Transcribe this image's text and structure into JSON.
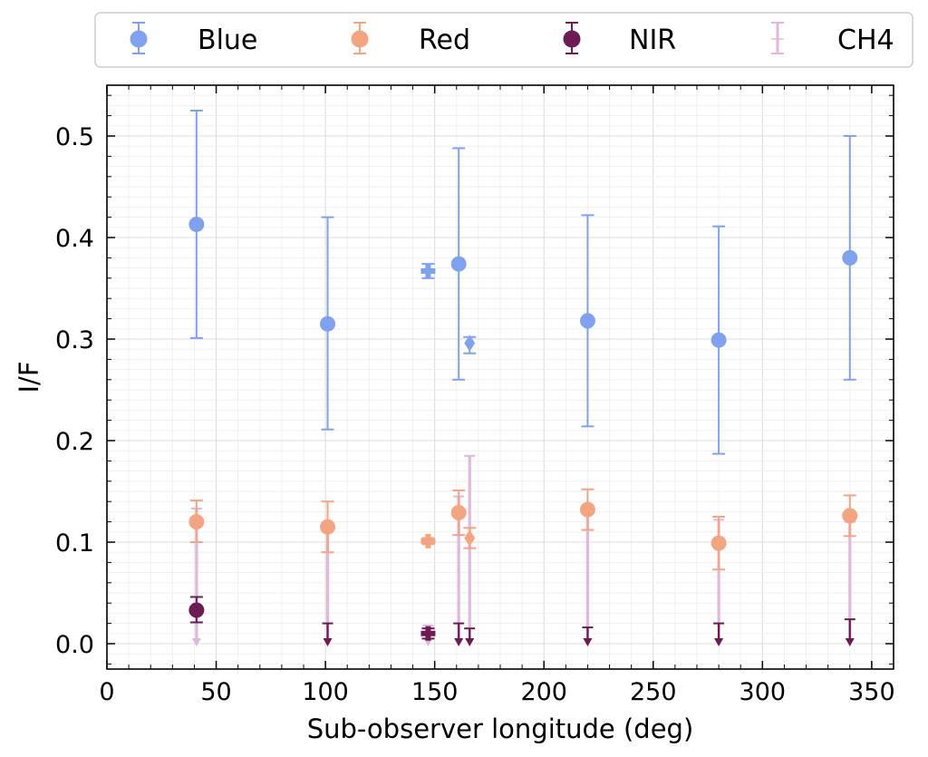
{
  "chart_data": {
    "type": "scatter",
    "xlabel": "Sub-observer longitude (deg)",
    "ylabel": "I/F",
    "xlim": [
      0,
      360
    ],
    "ylim": [
      -0.025,
      0.55
    ],
    "xticks": [
      0,
      50,
      100,
      150,
      200,
      250,
      300,
      350
    ],
    "xtick_labels": [
      "0",
      "50",
      "100",
      "150",
      "200",
      "250",
      "300",
      "350"
    ],
    "yticks": [
      0.0,
      0.1,
      0.2,
      0.3,
      0.4,
      0.5
    ],
    "ytick_labels": [
      "0.0",
      "0.1",
      "0.2",
      "0.3",
      "0.4",
      "0.5"
    ],
    "grid": true,
    "legend_position": "top",
    "series": [
      {
        "name": "Blue",
        "color": "#7fa2f0",
        "points": [
          {
            "x": 41,
            "y": 0.413,
            "err_lo": 0.112,
            "err_hi": 0.112,
            "marker": "circle"
          },
          {
            "x": 101,
            "y": 0.315,
            "err_lo": 0.104,
            "err_hi": 0.105,
            "marker": "circle"
          },
          {
            "x": 147,
            "y": 0.367,
            "err_lo": 0.007,
            "err_hi": 0.007,
            "marker": "plus"
          },
          {
            "x": 161,
            "y": 0.374,
            "err_lo": 0.114,
            "err_hi": 0.114,
            "marker": "circle"
          },
          {
            "x": 166,
            "y": 0.296,
            "err_lo": 0.01,
            "err_hi": 0.006,
            "marker": "diamond"
          },
          {
            "x": 220,
            "y": 0.318,
            "err_lo": 0.104,
            "err_hi": 0.104,
            "marker": "circle"
          },
          {
            "x": 280,
            "y": 0.299,
            "err_lo": 0.112,
            "err_hi": 0.112,
            "marker": "circle"
          },
          {
            "x": 340,
            "y": 0.38,
            "err_lo": 0.12,
            "err_hi": 0.12,
            "marker": "circle"
          }
        ]
      },
      {
        "name": "Red",
        "color": "#f4a57f",
        "points": [
          {
            "x": 41,
            "y": 0.12,
            "err_lo": 0.02,
            "err_hi": 0.021,
            "marker": "circle"
          },
          {
            "x": 101,
            "y": 0.115,
            "err_lo": 0.025,
            "err_hi": 0.025,
            "marker": "circle"
          },
          {
            "x": 147,
            "y": 0.101,
            "err_lo": 0.003,
            "err_hi": 0.003,
            "marker": "plus"
          },
          {
            "x": 161,
            "y": 0.129,
            "err_lo": 0.022,
            "err_hi": 0.022,
            "marker": "circle"
          },
          {
            "x": 166,
            "y": 0.104,
            "err_lo": 0.01,
            "err_hi": 0.01,
            "marker": "diamond"
          },
          {
            "x": 220,
            "y": 0.132,
            "err_lo": 0.02,
            "err_hi": 0.02,
            "marker": "circle"
          },
          {
            "x": 280,
            "y": 0.099,
            "err_lo": 0.026,
            "err_hi": 0.026,
            "marker": "circle"
          },
          {
            "x": 340,
            "y": 0.126,
            "err_lo": 0.02,
            "err_hi": 0.02,
            "marker": "circle"
          }
        ]
      },
      {
        "name": "NIR",
        "color": "#6e1a55",
        "points": [
          {
            "x": 41,
            "y": 0.033,
            "err_lo": 0.012,
            "err_hi": 0.013,
            "marker": "circle"
          },
          {
            "x": 101,
            "upper_limit": 0.02,
            "marker": "down-arrow"
          },
          {
            "x": 147,
            "y": 0.01,
            "err_lo": 0.005,
            "err_hi": 0.005,
            "marker": "plus"
          },
          {
            "x": 161,
            "upper_limit": 0.02,
            "marker": "down-arrow"
          },
          {
            "x": 166,
            "upper_limit": 0.015,
            "marker": "down-arrow"
          },
          {
            "x": 220,
            "upper_limit": 0.016,
            "marker": "down-arrow"
          },
          {
            "x": 280,
            "upper_limit": 0.02,
            "marker": "down-arrow"
          },
          {
            "x": 340,
            "upper_limit": 0.024,
            "marker": "down-arrow"
          }
        ]
      },
      {
        "name": "CH4",
        "color": "#e0b8dc",
        "points": [
          {
            "x": 41,
            "upper_limit": 0.133,
            "marker": "down-arrow"
          },
          {
            "x": 101,
            "upper_limit": 0.11,
            "marker": "down-arrow"
          },
          {
            "x": 147,
            "upper_limit": 0.018,
            "marker": "down-arrow"
          },
          {
            "x": 161,
            "upper_limit": 0.145,
            "marker": "down-arrow"
          },
          {
            "x": 166,
            "upper_limit": 0.185,
            "marker": "down-arrow"
          },
          {
            "x": 220,
            "upper_limit": 0.137,
            "marker": "down-arrow"
          },
          {
            "x": 280,
            "upper_limit": 0.122,
            "marker": "down-arrow"
          },
          {
            "x": 340,
            "upper_limit": 0.12,
            "marker": "down-arrow"
          }
        ]
      }
    ]
  }
}
